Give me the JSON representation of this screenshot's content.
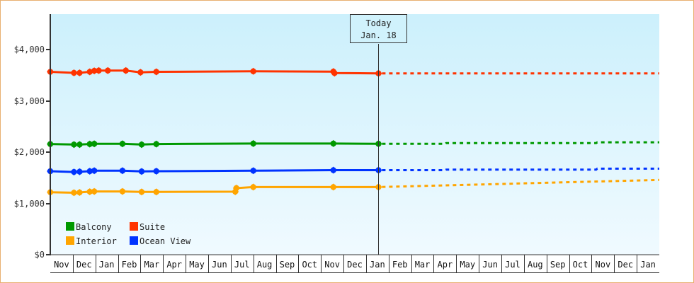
{
  "chart_data": {
    "type": "line",
    "title": "",
    "xlabel": "",
    "ylabel": "",
    "ylim": [
      0,
      4700
    ],
    "yticks": [
      0,
      1000,
      2000,
      3000,
      4000
    ],
    "ytick_labels": [
      "$0",
      "$1,000",
      "$2,000",
      "$3,000",
      "$4,000"
    ],
    "months": [
      "Nov",
      "Dec",
      "Jan",
      "Feb",
      "Mar",
      "Apr",
      "May",
      "Jun",
      "Jul",
      "Aug",
      "Sep",
      "Oct",
      "Nov",
      "Dec",
      "Jan",
      "Feb",
      "Mar",
      "Apr",
      "May",
      "Jun",
      "Jul",
      "Aug",
      "Sep",
      "Oct",
      "Nov",
      "Dec",
      "Jan"
    ],
    "today": {
      "label_line1": "Today",
      "label_line2": "Jan. 18",
      "x_index": 14.55
    },
    "legend": [
      {
        "name": "Balcony",
        "color": "#009900"
      },
      {
        "name": "Suite",
        "color": "#ff3300"
      },
      {
        "name": "Interior",
        "color": "#ffa500"
      },
      {
        "name": "Ocean View",
        "color": "#0033ff"
      }
    ],
    "series": [
      {
        "name": "Suite",
        "color": "#ff3300",
        "historical": [
          [
            0,
            3570
          ],
          [
            1.05,
            3550
          ],
          [
            1.3,
            3550
          ],
          [
            1.75,
            3570
          ],
          [
            1.95,
            3590
          ],
          [
            2.15,
            3595
          ],
          [
            2.55,
            3595
          ],
          [
            3.35,
            3595
          ],
          [
            4.0,
            3560
          ],
          [
            4.7,
            3570
          ],
          [
            9.0,
            3580
          ],
          [
            12.55,
            3575
          ],
          [
            12.6,
            3545
          ],
          [
            14.55,
            3540
          ]
        ],
        "forecast": [
          [
            14.55,
            3540
          ],
          [
            27,
            3540
          ]
        ]
      },
      {
        "name": "Balcony",
        "color": "#009900",
        "historical": [
          [
            0,
            2160
          ],
          [
            1.05,
            2150
          ],
          [
            1.3,
            2150
          ],
          [
            1.75,
            2160
          ],
          [
            1.95,
            2165
          ],
          [
            3.2,
            2165
          ],
          [
            4.05,
            2150
          ],
          [
            4.7,
            2160
          ],
          [
            9.0,
            2170
          ],
          [
            12.55,
            2170
          ],
          [
            14.55,
            2165
          ]
        ],
        "forecast": [
          [
            14.55,
            2165
          ],
          [
            17.5,
            2165
          ],
          [
            17.55,
            2180
          ],
          [
            24.2,
            2180
          ],
          [
            24.25,
            2195
          ],
          [
            27,
            2195
          ]
        ]
      },
      {
        "name": "Ocean View",
        "color": "#0033ff",
        "historical": [
          [
            0,
            1630
          ],
          [
            1.05,
            1615
          ],
          [
            1.3,
            1620
          ],
          [
            1.75,
            1630
          ],
          [
            1.95,
            1640
          ],
          [
            3.2,
            1640
          ],
          [
            4.05,
            1625
          ],
          [
            4.7,
            1630
          ],
          [
            9.0,
            1640
          ],
          [
            12.55,
            1650
          ],
          [
            14.55,
            1650
          ]
        ],
        "forecast": [
          [
            14.55,
            1650
          ],
          [
            17.5,
            1650
          ],
          [
            17.55,
            1660
          ],
          [
            24.2,
            1660
          ],
          [
            24.25,
            1680
          ],
          [
            27,
            1680
          ]
        ]
      },
      {
        "name": "Interior",
        "color": "#ffa500",
        "historical": [
          [
            0,
            1220
          ],
          [
            1.05,
            1210
          ],
          [
            1.3,
            1215
          ],
          [
            1.75,
            1230
          ],
          [
            1.95,
            1235
          ],
          [
            3.2,
            1235
          ],
          [
            4.05,
            1225
          ],
          [
            4.7,
            1225
          ],
          [
            8.2,
            1230
          ],
          [
            8.25,
            1300
          ],
          [
            9.0,
            1320
          ],
          [
            12.55,
            1320
          ],
          [
            14.55,
            1320
          ]
        ],
        "forecast": [
          [
            14.55,
            1320
          ],
          [
            27,
            1460
          ]
        ]
      }
    ]
  }
}
